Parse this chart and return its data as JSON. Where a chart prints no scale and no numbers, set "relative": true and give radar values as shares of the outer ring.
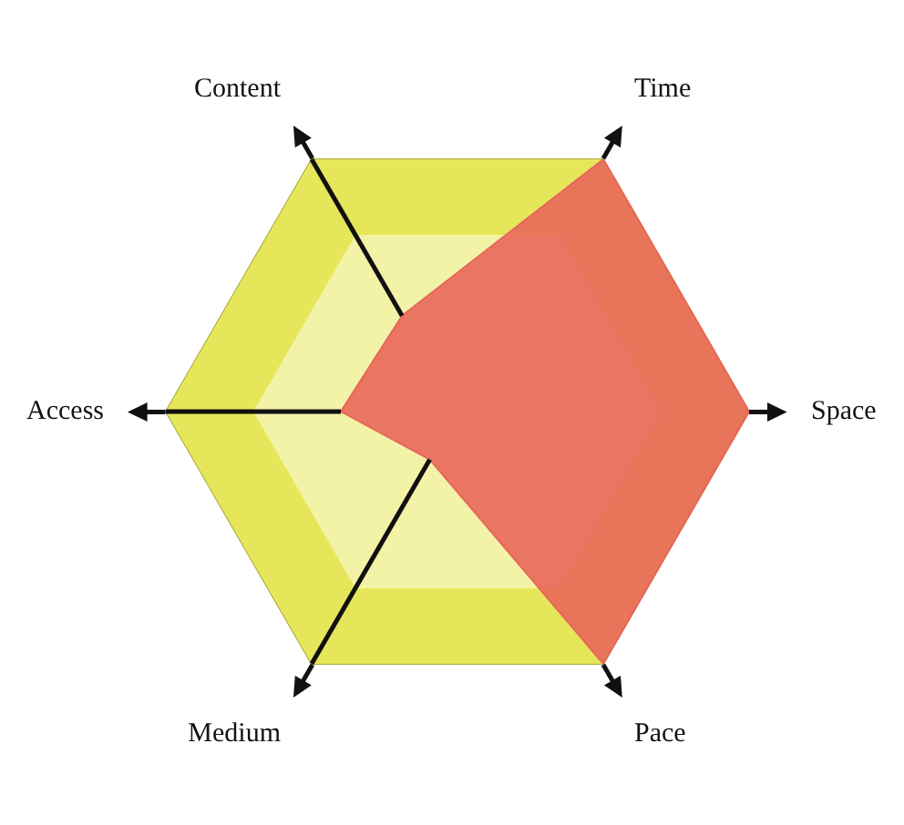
{
  "chart_data": {
    "type": "radar",
    "relative": true,
    "categories": [
      "Time",
      "Space",
      "Pace",
      "Medium",
      "Access",
      "Content"
    ],
    "series": [
      {
        "color": "#e8675a",
        "values": [
          1,
          1,
          1,
          0.19,
          0.4,
          0.38
        ]
      }
    ],
    "grid": true,
    "legend": false,
    "marker": "none"
  }
}
